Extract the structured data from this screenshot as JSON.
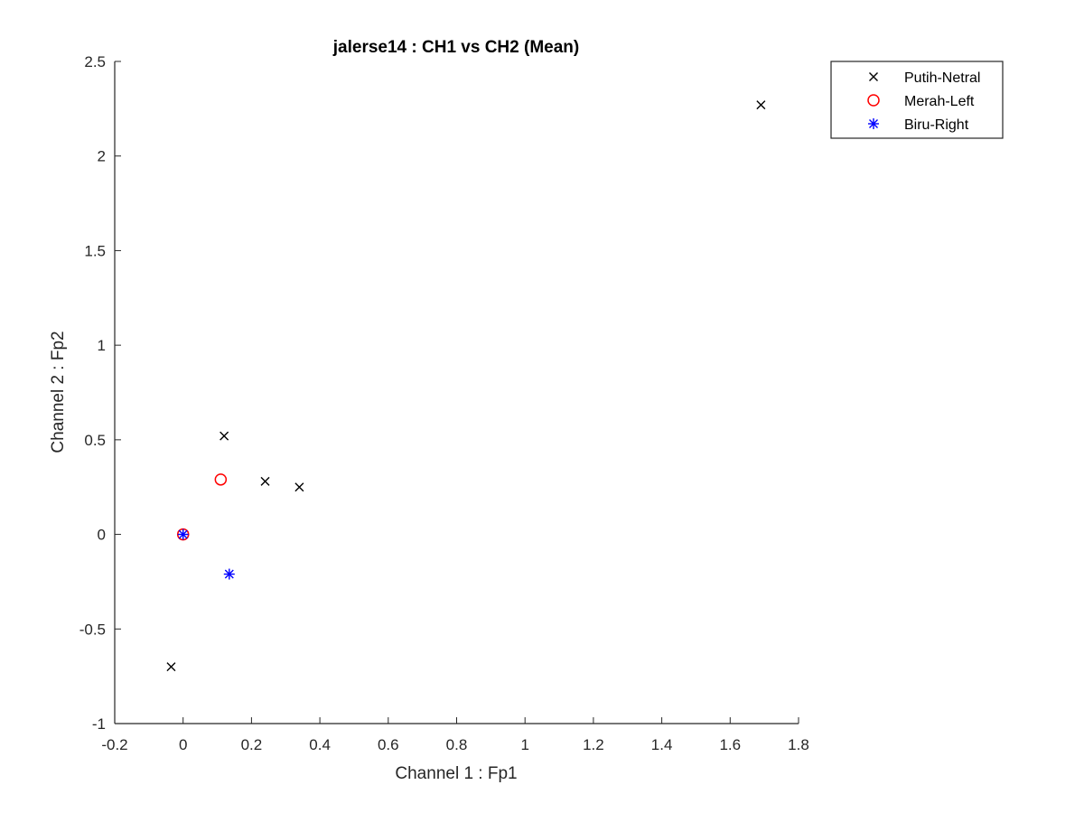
{
  "chart_data": {
    "type": "scatter",
    "title": "jalerse14 : CH1 vs CH2 (Mean)",
    "xlabel": "Channel 1 : Fp1",
    "ylabel": "Channel 2 : Fp2",
    "xlim": [
      -0.2,
      1.8
    ],
    "ylim": [
      -1,
      2.5
    ],
    "xticks": [
      -0.2,
      0,
      0.2,
      0.4,
      0.6,
      0.8,
      1,
      1.2,
      1.4,
      1.6,
      1.8
    ],
    "yticks": [
      -1,
      -0.5,
      0,
      0.5,
      1,
      1.5,
      2,
      2.5
    ],
    "xtick_labels": [
      "-0.2",
      "0",
      "0.2",
      "0.4",
      "0.6",
      "0.8",
      "1",
      "1.2",
      "1.4",
      "1.6",
      "1.8"
    ],
    "ytick_labels": [
      "-1",
      "-0.5",
      "0",
      "0.5",
      "1",
      "1.5",
      "2",
      "2.5"
    ],
    "grid": false,
    "legend_position": "top-right outside",
    "series": [
      {
        "name": "Putih-Netral",
        "marker": "x",
        "color": "#000000",
        "points": [
          [
            1.69,
            2.27
          ],
          [
            0.12,
            0.52
          ],
          [
            0.24,
            0.28
          ],
          [
            0.34,
            0.25
          ],
          [
            -0.035,
            -0.7
          ]
        ]
      },
      {
        "name": "Merah-Left",
        "marker": "o",
        "color": "#ff0000",
        "points": [
          [
            0.11,
            0.29
          ],
          [
            0.0,
            0.0
          ]
        ]
      },
      {
        "name": "Biru-Right",
        "marker": "*",
        "color": "#0000ff",
        "points": [
          [
            0.135,
            -0.21
          ],
          [
            0.0,
            0.0
          ]
        ]
      }
    ]
  }
}
